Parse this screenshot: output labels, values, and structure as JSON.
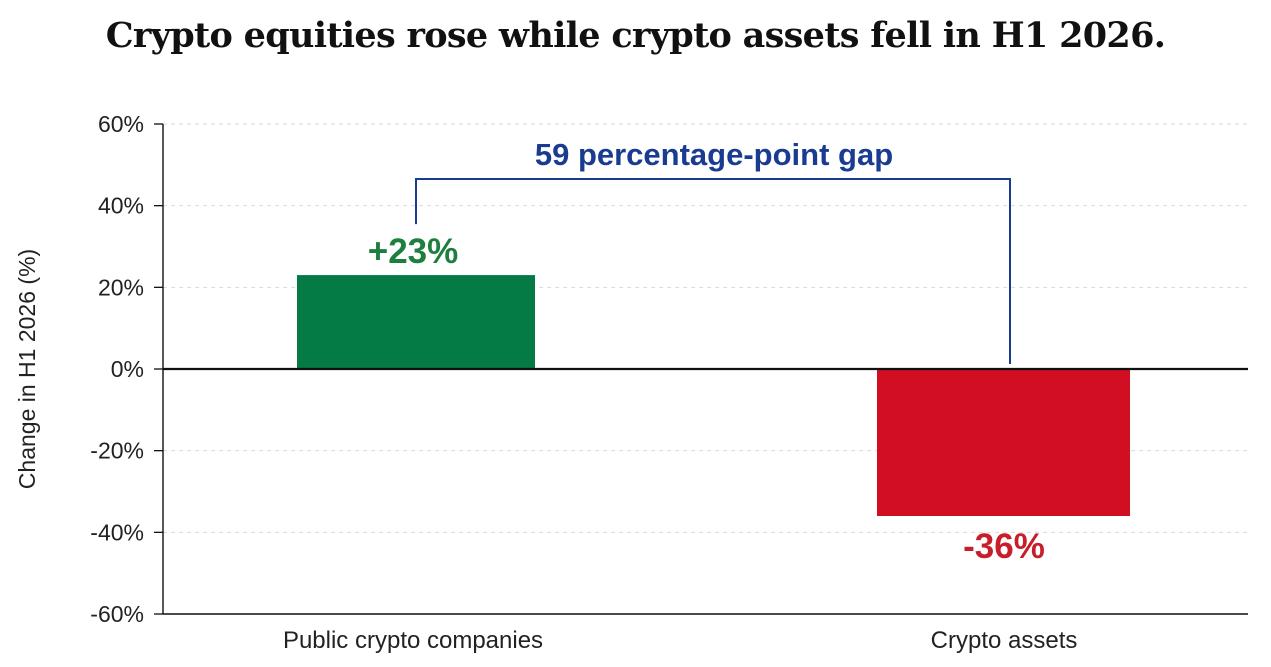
{
  "title": "Crypto equities rose while crypto assets fell in H1 2026.",
  "colors": {
    "positive": "#047A45",
    "negative": "#D20E23",
    "positive_label": "#1E7E3D",
    "negative_label": "#C81E2A",
    "gap": "#193C92",
    "axis": "#111111",
    "grid": "#DADADA"
  },
  "chart_data": {
    "type": "bar",
    "title": "Crypto equities rose while crypto assets fell in H1 2026.",
    "categories": [
      "Public crypto companies",
      "Crypto assets"
    ],
    "values": [
      23,
      -36
    ],
    "value_labels": [
      "+23%",
      "-36%"
    ],
    "ylabel": "Change in H1 2026 (%)",
    "ylim": [
      -60,
      60
    ],
    "yticks": [
      60,
      40,
      20,
      0,
      -20,
      -40,
      -60
    ],
    "ytick_labels": [
      "60%",
      "40%",
      "20%",
      "0%",
      "-20%",
      "-40%",
      "-60%"
    ],
    "grid": true,
    "annotation": {
      "text": "59 percentage-point gap",
      "from_category": "Public crypto companies",
      "to_category": "Crypto assets",
      "value": 59
    }
  }
}
